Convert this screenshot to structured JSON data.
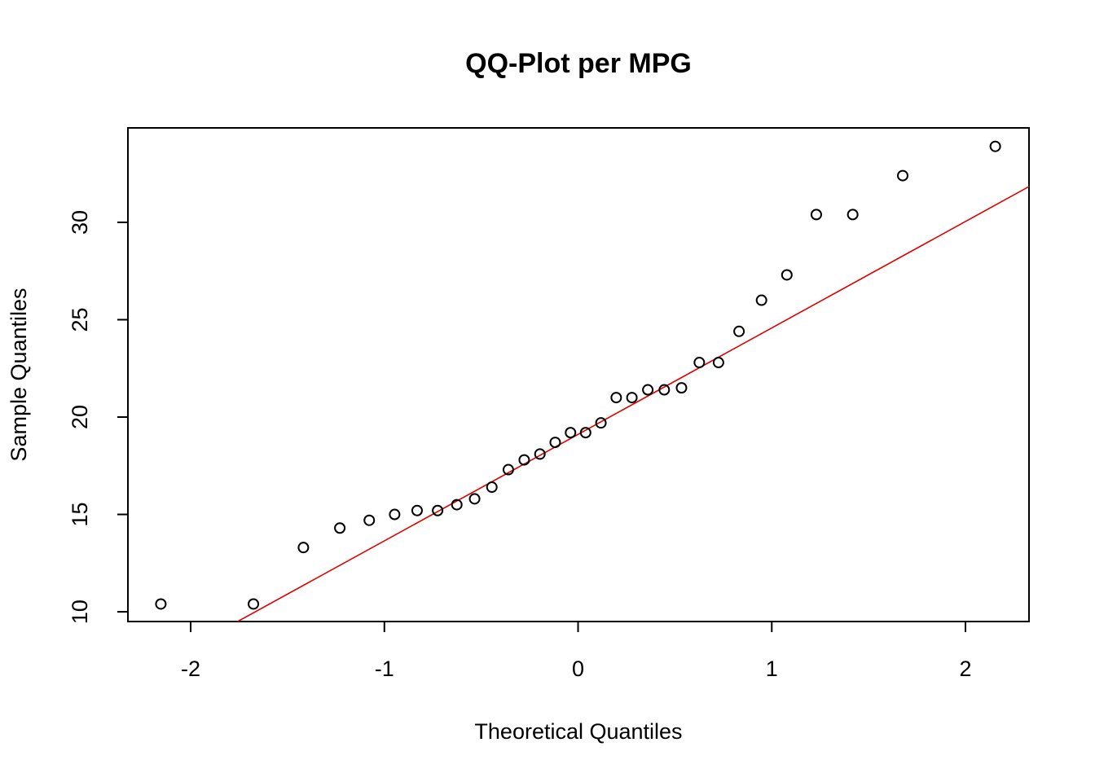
{
  "chart_data": {
    "type": "scatter",
    "title": "QQ-Plot per MPG",
    "x_label": "Theoretical Quantiles",
    "y_label": "Sample Quantiles",
    "x": [
      -2.154,
      -1.676,
      -1.418,
      -1.23,
      -1.078,
      -0.947,
      -0.831,
      -0.725,
      -0.626,
      -0.534,
      -0.445,
      -0.36,
      -0.278,
      -0.197,
      -0.118,
      -0.039,
      0.039,
      0.118,
      0.197,
      0.278,
      0.36,
      0.445,
      0.534,
      0.626,
      0.725,
      0.831,
      0.947,
      1.078,
      1.23,
      1.418,
      1.676,
      2.154
    ],
    "values": [
      10.4,
      10.4,
      13.3,
      14.3,
      14.7,
      15.0,
      15.2,
      15.2,
      15.5,
      15.8,
      16.4,
      17.3,
      17.8,
      18.1,
      18.7,
      19.2,
      19.2,
      19.7,
      21.0,
      21.0,
      21.4,
      21.4,
      21.5,
      22.8,
      22.8,
      24.4,
      26.0,
      27.3,
      30.4,
      30.4,
      32.4,
      33.9
    ],
    "color": "#000000",
    "reference_line": {
      "slope": 5.467,
      "intercept": 19.11,
      "color": "#e00000"
    },
    "xlim": [
      -2.324,
      2.328
    ],
    "ylim": [
      9.5,
      34.85
    ],
    "xticks": [
      -2,
      -1,
      0,
      1,
      2
    ],
    "yticks": [
      10,
      15,
      20,
      25,
      30
    ]
  }
}
